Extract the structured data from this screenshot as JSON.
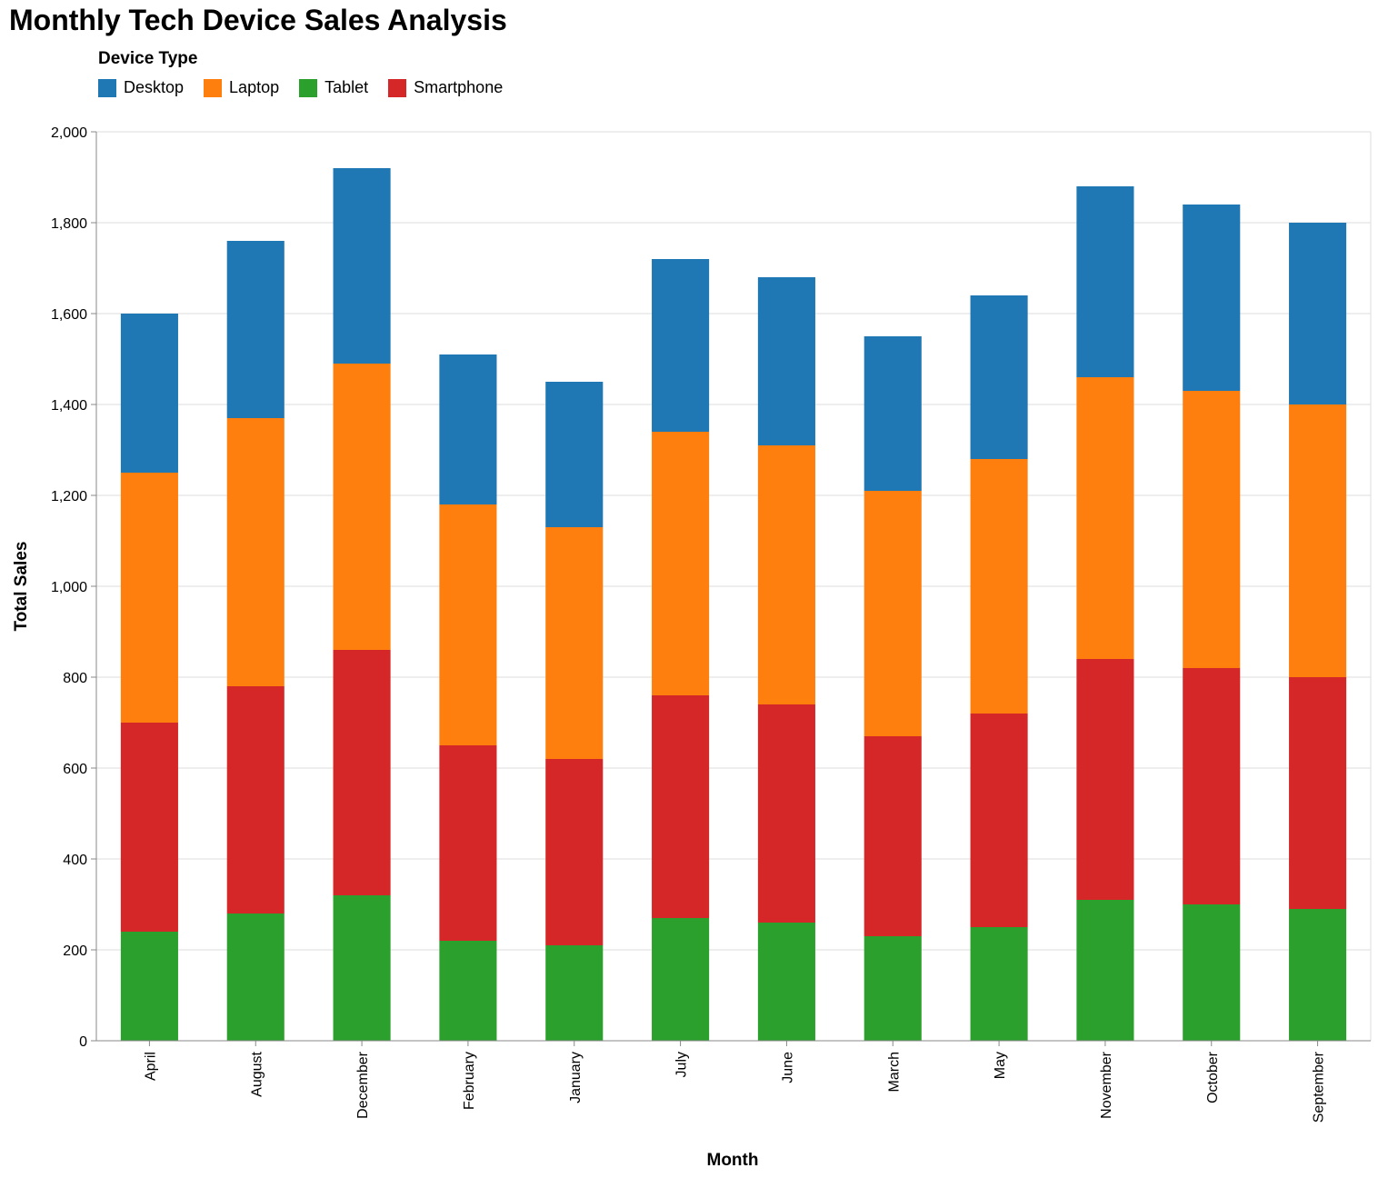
{
  "chart_data": {
    "type": "bar",
    "stacked": true,
    "title": "Monthly Tech Device Sales Analysis",
    "xlabel": "Month",
    "ylabel": "Total Sales",
    "ylim": [
      0,
      2000
    ],
    "yticks": [
      0,
      200,
      400,
      600,
      800,
      1000,
      1200,
      1400,
      1600,
      1800,
      2000
    ],
    "ytick_labels": [
      "0",
      "200",
      "400",
      "600",
      "800",
      "1,000",
      "1,200",
      "1,400",
      "1,600",
      "1,800",
      "2,000"
    ],
    "grid": true,
    "legend": {
      "title": "Device Type",
      "placement": "top-left"
    },
    "categories": [
      "April",
      "August",
      "December",
      "February",
      "January",
      "July",
      "June",
      "March",
      "May",
      "November",
      "October",
      "September"
    ],
    "series": [
      {
        "name": "Tablet",
        "color": "#2ca02c",
        "values": [
          240,
          280,
          320,
          220,
          210,
          270,
          260,
          230,
          250,
          310,
          300,
          290
        ]
      },
      {
        "name": "Smartphone",
        "color": "#d62728",
        "values": [
          460,
          500,
          540,
          430,
          410,
          490,
          480,
          440,
          470,
          530,
          520,
          510
        ]
      },
      {
        "name": "Laptop",
        "color": "#ff7f0e",
        "values": [
          550,
          590,
          630,
          530,
          510,
          580,
          570,
          540,
          560,
          620,
          610,
          600
        ]
      },
      {
        "name": "Desktop",
        "color": "#1f77b4",
        "values": [
          350,
          390,
          430,
          330,
          320,
          380,
          370,
          340,
          360,
          420,
          410,
          400
        ]
      }
    ],
    "legend_order": [
      "Desktop",
      "Laptop",
      "Tablet",
      "Smartphone"
    ]
  }
}
